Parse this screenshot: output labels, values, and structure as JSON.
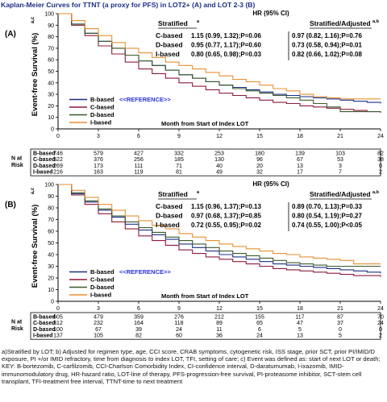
{
  "figure": {
    "title": "Kaplan-Meier Curves for TTNT (a proxy for PFS) in LOT2+ (A) and LOT 2-3 (B)",
    "footnote": "a)Stratified by LOT; b) Adjusted for regimen type, age, CCI score, CRAB symptoms, cytogenetic risk, ISS stage, prior SCT, prior PI/IMID/D exposure, PI +/or IMID refractory, time from diagnosis to index LOT, TFI, setting of care; c) Event was defined as: start of next LOT or death; KEY: B-bortezomib, C-carfilzomib, CCI-Charlson Comorbidity Index, CI-confidence interval, D-daratumumab, I-ixazomib, IMID-immunomodulatory drug, HR-hazard ratio, LOT-line of therapy, PFS-progression-free survival, PI-proteasome inhibitor, SCT-stem cell transplant, TFI-treatment free interval, TTNT-time to next treatment",
    "colors": {
      "B": "#1d2f86",
      "C": "#8c1a3a",
      "D": "#3d5a2e",
      "I": "#e89030"
    }
  },
  "chart_data": [
    {
      "type": "line",
      "panel_label": "(A)",
      "ylabel": "Event-free Survival (%)",
      "ylabel_sup": "a,c",
      "xlabel": "Month from Start of Index LOT",
      "ylim": [
        0,
        100
      ],
      "xlim": [
        0,
        24
      ],
      "yticks": [
        0,
        10,
        20,
        30,
        40,
        50,
        60,
        70,
        80,
        90,
        100
      ],
      "xticks": [
        0,
        3,
        6,
        9,
        12,
        15,
        18,
        21,
        24
      ],
      "legend": [
        {
          "label": "B-based",
          "key": "B",
          "note": "<<REFERENCE>>"
        },
        {
          "label": "C-based",
          "key": "C"
        },
        {
          "label": "D-based",
          "key": "D"
        },
        {
          "label": "I-based",
          "key": "I"
        }
      ],
      "hr_table": {
        "header": "HR (95% CI)",
        "col1": "Stratified",
        "col1_sup": "a",
        "col2": "Stratified/Adjusted",
        "col2_sup": "a,b",
        "rows": [
          {
            "label": "C-based",
            "strat": "1.15 (0.99, 1.32);P=0.06",
            "adj": "0.97 (0.82, 1.16);P=0.76"
          },
          {
            "label": "D-based",
            "strat": "0.95 (0.77, 1.17);P=0.60",
            "adj": "0.73 (0.58, 0.94);P=0.01"
          },
          {
            "label": "I-based",
            "strat": "0.80 (0.65, 0.98);P=0.03",
            "adj": "0.82 (0.66, 1.02);P=0.08"
          }
        ]
      },
      "series": [
        {
          "name": "B-based",
          "key": "B",
          "x": [
            0,
            1,
            2,
            3,
            4,
            5,
            6,
            7,
            8,
            9,
            10,
            11,
            12,
            13,
            14,
            15,
            16,
            17,
            18,
            19,
            20,
            21,
            22,
            23,
            24
          ],
          "y": [
            100,
            91,
            83,
            76,
            70,
            64,
            59,
            55,
            51,
            47,
            44,
            41,
            38,
            36,
            34,
            32,
            30,
            29,
            28,
            27,
            26,
            25,
            24,
            23,
            22
          ]
        },
        {
          "name": "C-based",
          "key": "C",
          "x": [
            0,
            1,
            2,
            3,
            4,
            5,
            6,
            7,
            8,
            9,
            10,
            11,
            12,
            13,
            14,
            15,
            16,
            17,
            18,
            19,
            20,
            21,
            22,
            23,
            24
          ],
          "y": [
            100,
            90,
            81,
            72,
            65,
            58,
            52,
            48,
            44,
            40,
            37,
            34,
            31,
            29,
            27,
            25,
            23,
            22,
            20,
            19,
            18,
            17,
            16,
            15,
            14
          ]
        },
        {
          "name": "D-based",
          "key": "D",
          "x": [
            0,
            1,
            2,
            3,
            4,
            5,
            6,
            7,
            8,
            9,
            10,
            11,
            12,
            13,
            14,
            15,
            16,
            17,
            18,
            19,
            20,
            21,
            22,
            23,
            24
          ],
          "y": [
            100,
            91,
            83,
            76,
            70,
            64,
            59,
            55,
            51,
            47,
            44,
            41,
            38,
            35,
            33,
            31,
            29,
            27,
            25,
            22,
            19,
            15,
            15,
            15,
            15
          ]
        },
        {
          "name": "I-based",
          "key": "I",
          "x": [
            0,
            1,
            2,
            3,
            4,
            5,
            6,
            7,
            8,
            9,
            10,
            11,
            12,
            13,
            14,
            15,
            16,
            17,
            18,
            19,
            20,
            21,
            22,
            23,
            24
          ],
          "y": [
            100,
            94,
            87,
            81,
            75,
            70,
            66,
            62,
            58,
            55,
            52,
            49,
            46,
            43,
            41,
            38,
            35,
            33,
            30,
            28,
            27,
            26,
            26,
            26,
            26
          ]
        }
      ],
      "risk_table": {
        "label_lines": [
          "N at",
          "Risk"
        ],
        "times": [
          0,
          3,
          6,
          9,
          12,
          15,
          18,
          21,
          24
        ],
        "rows": [
          {
            "label": "B-based",
            "counts": [
              746,
              579,
              427,
              332,
              253,
              180,
              139,
              103,
              82
            ]
          },
          {
            "label": "C-based",
            "counts": [
              522,
              376,
              256,
              185,
              130,
              96,
              67,
              53,
              38
            ]
          },
          {
            "label": "D-based",
            "counts": [
              269,
              173,
              111,
              71,
              40,
              20,
              13,
              3,
              0
            ]
          },
          {
            "label": "I-based",
            "counts": [
              216,
              163,
              119,
              81,
              49,
              32,
              17,
              7,
              2
            ]
          }
        ]
      }
    },
    {
      "type": "line",
      "panel_label": "(B)",
      "ylabel": "Event-free Survival (%)",
      "ylabel_sup": "a,c",
      "xlabel": "Month from Start of Index LOT",
      "ylim": [
        0,
        100
      ],
      "xlim": [
        0,
        24
      ],
      "yticks": [
        0,
        10,
        20,
        30,
        40,
        50,
        60,
        70,
        80,
        90,
        100
      ],
      "xticks": [
        0,
        3,
        6,
        9,
        12,
        15,
        18,
        21,
        24
      ],
      "legend": [
        {
          "label": "B-based",
          "key": "B",
          "note": "<<REFERENCE>>"
        },
        {
          "label": "C-based",
          "key": "C"
        },
        {
          "label": "D-based",
          "key": "D"
        },
        {
          "label": "I-based",
          "key": "I"
        }
      ],
      "hr_table": {
        "header": "HR (95% CI)",
        "col1": "Stratified",
        "col1_sup": "a",
        "col2": "Stratified/Adjusted",
        "col2_sup": "a,b",
        "rows": [
          {
            "label": "C-based",
            "strat": "1.15 (0.96, 1.37);P=0.13",
            "adj": "0.89 (0.70, 1.13);P=0.33"
          },
          {
            "label": "D-based",
            "strat": "0.97 (0.68, 1.37);P=0.85",
            "adj": "0.80 (0.54, 1.19);P=0.27"
          },
          {
            "label": "I-based",
            "strat": "0.72 (0.55, 0.95);P=0.02",
            "adj": "0.74 (0.55, 1.00);P<0.05"
          }
        ]
      },
      "series": [
        {
          "name": "B-based",
          "key": "B",
          "x": [
            0,
            1,
            2,
            3,
            4,
            5,
            6,
            7,
            8,
            9,
            10,
            11,
            12,
            13,
            14,
            15,
            16,
            17,
            18,
            19,
            20,
            21,
            22,
            23,
            24
          ],
          "y": [
            100,
            92,
            85,
            78,
            72,
            66,
            61,
            57,
            53,
            49,
            46,
            43,
            40,
            38,
            36,
            34,
            32,
            31,
            30,
            29,
            28,
            27,
            26,
            25,
            24
          ]
        },
        {
          "name": "C-based",
          "key": "C",
          "x": [
            0,
            1,
            2,
            3,
            4,
            5,
            6,
            7,
            8,
            9,
            10,
            11,
            12,
            13,
            14,
            15,
            16,
            17,
            18,
            19,
            20,
            21,
            22,
            23,
            24
          ],
          "y": [
            100,
            91,
            83,
            75,
            68,
            62,
            56,
            52,
            48,
            44,
            41,
            38,
            36,
            34,
            32,
            30,
            28,
            27,
            26,
            25,
            24,
            23,
            22,
            22,
            21
          ]
        },
        {
          "name": "D-based",
          "key": "D",
          "x": [
            0,
            1,
            2,
            3,
            4,
            5,
            6,
            7,
            8,
            9,
            10,
            11,
            12,
            13,
            14,
            15,
            16,
            17,
            18,
            19,
            20,
            21,
            22,
            23,
            24
          ],
          "y": [
            100,
            93,
            86,
            79,
            73,
            68,
            63,
            59,
            55,
            52,
            49,
            46,
            43,
            41,
            39,
            37,
            35,
            33,
            32,
            31,
            30,
            30,
            30,
            30,
            30
          ]
        },
        {
          "name": "I-based",
          "key": "I",
          "x": [
            0,
            1,
            2,
            3,
            4,
            5,
            6,
            7,
            8,
            9,
            10,
            11,
            12,
            13,
            14,
            15,
            16,
            17,
            18,
            19,
            20,
            21,
            22,
            23,
            24
          ],
          "y": [
            100,
            95,
            89,
            83,
            78,
            73,
            69,
            65,
            62,
            58,
            55,
            52,
            49,
            47,
            45,
            43,
            41,
            40,
            38,
            37,
            36,
            35,
            32,
            32,
            32
          ]
        }
      ],
      "risk_table": {
        "label_lines": [
          "N at",
          "Risk"
        ],
        "times": [
          0,
          3,
          6,
          9,
          12,
          15,
          18,
          21,
          24
        ],
        "rows": [
          {
            "label": "B-based",
            "counts": [
              605,
              479,
              359,
              276,
              212,
              155,
              117,
              87,
              70
            ]
          },
          {
            "label": "C-based",
            "counts": [
              312,
              232,
              164,
              118,
              89,
              65,
              47,
              37,
              24
            ]
          },
          {
            "label": "D-based",
            "counts": [
              100,
              67,
              39,
              24,
              11,
              6,
              5,
              0,
              0
            ]
          },
          {
            "label": "I-based",
            "counts": [
              137,
              105,
              82,
              60,
              36,
              24,
              13,
              5,
              2
            ]
          }
        ]
      }
    }
  ]
}
